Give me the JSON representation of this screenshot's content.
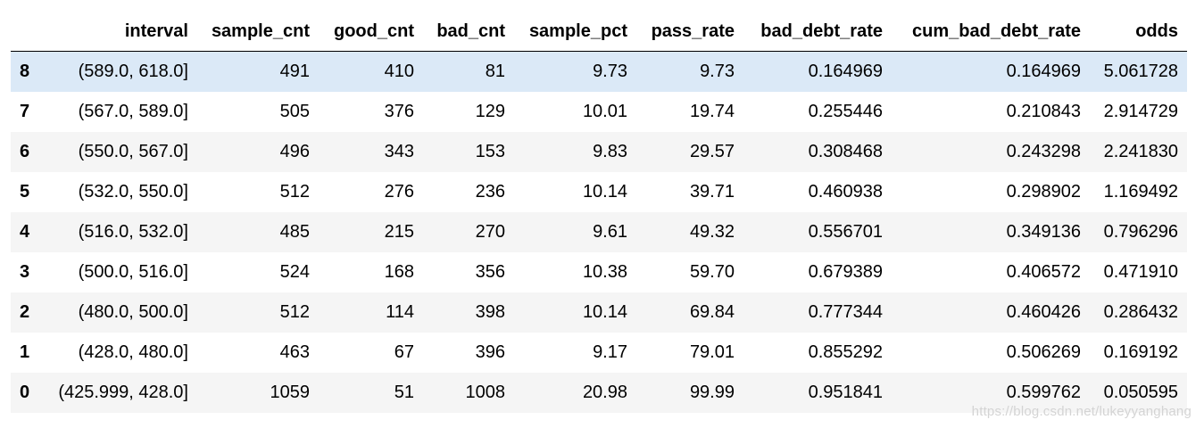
{
  "table": {
    "columns": [
      "",
      "interval",
      "sample_cnt",
      "good_cnt",
      "bad_cnt",
      "sample_pct",
      "pass_rate",
      "bad_debt_rate",
      "cum_bad_debt_rate",
      "odds"
    ],
    "rows": [
      {
        "index": "8",
        "interval": "(589.0, 618.0]",
        "sample_cnt": "491",
        "good_cnt": "410",
        "bad_cnt": "81",
        "sample_pct": "9.73",
        "pass_rate": "9.73",
        "bad_debt_rate": "0.164969",
        "cum_bad_debt_rate": "0.164969",
        "odds": "5.061728"
      },
      {
        "index": "7",
        "interval": "(567.0, 589.0]",
        "sample_cnt": "505",
        "good_cnt": "376",
        "bad_cnt": "129",
        "sample_pct": "10.01",
        "pass_rate": "19.74",
        "bad_debt_rate": "0.255446",
        "cum_bad_debt_rate": "0.210843",
        "odds": "2.914729"
      },
      {
        "index": "6",
        "interval": "(550.0, 567.0]",
        "sample_cnt": "496",
        "good_cnt": "343",
        "bad_cnt": "153",
        "sample_pct": "9.83",
        "pass_rate": "29.57",
        "bad_debt_rate": "0.308468",
        "cum_bad_debt_rate": "0.243298",
        "odds": "2.241830"
      },
      {
        "index": "5",
        "interval": "(532.0, 550.0]",
        "sample_cnt": "512",
        "good_cnt": "276",
        "bad_cnt": "236",
        "sample_pct": "10.14",
        "pass_rate": "39.71",
        "bad_debt_rate": "0.460938",
        "cum_bad_debt_rate": "0.298902",
        "odds": "1.169492"
      },
      {
        "index": "4",
        "interval": "(516.0, 532.0]",
        "sample_cnt": "485",
        "good_cnt": "215",
        "bad_cnt": "270",
        "sample_pct": "9.61",
        "pass_rate": "49.32",
        "bad_debt_rate": "0.556701",
        "cum_bad_debt_rate": "0.349136",
        "odds": "0.796296"
      },
      {
        "index": "3",
        "interval": "(500.0, 516.0]",
        "sample_cnt": "524",
        "good_cnt": "168",
        "bad_cnt": "356",
        "sample_pct": "10.38",
        "pass_rate": "59.70",
        "bad_debt_rate": "0.679389",
        "cum_bad_debt_rate": "0.406572",
        "odds": "0.471910"
      },
      {
        "index": "2",
        "interval": "(480.0, 500.0]",
        "sample_cnt": "512",
        "good_cnt": "114",
        "bad_cnt": "398",
        "sample_pct": "10.14",
        "pass_rate": "69.84",
        "bad_debt_rate": "0.777344",
        "cum_bad_debt_rate": "0.460426",
        "odds": "0.286432"
      },
      {
        "index": "1",
        "interval": "(428.0, 480.0]",
        "sample_cnt": "463",
        "good_cnt": "67",
        "bad_cnt": "396",
        "sample_pct": "9.17",
        "pass_rate": "79.01",
        "bad_debt_rate": "0.855292",
        "cum_bad_debt_rate": "0.506269",
        "odds": "0.169192"
      },
      {
        "index": "0",
        "interval": "(425.999, 428.0]",
        "sample_cnt": "1059",
        "good_cnt": "51",
        "bad_cnt": "1008",
        "sample_pct": "20.98",
        "pass_rate": "99.99",
        "bad_debt_rate": "0.951841",
        "cum_bad_debt_rate": "0.599762",
        "odds": "0.050595"
      }
    ]
  },
  "watermark": "https://blog.csdn.net/lukeyyanghang",
  "colors": {
    "hovered_row": "#dbe9f7",
    "striped_row": "#f5f5f5",
    "header_rule": "#000000",
    "watermark": "#d4d4d4"
  }
}
